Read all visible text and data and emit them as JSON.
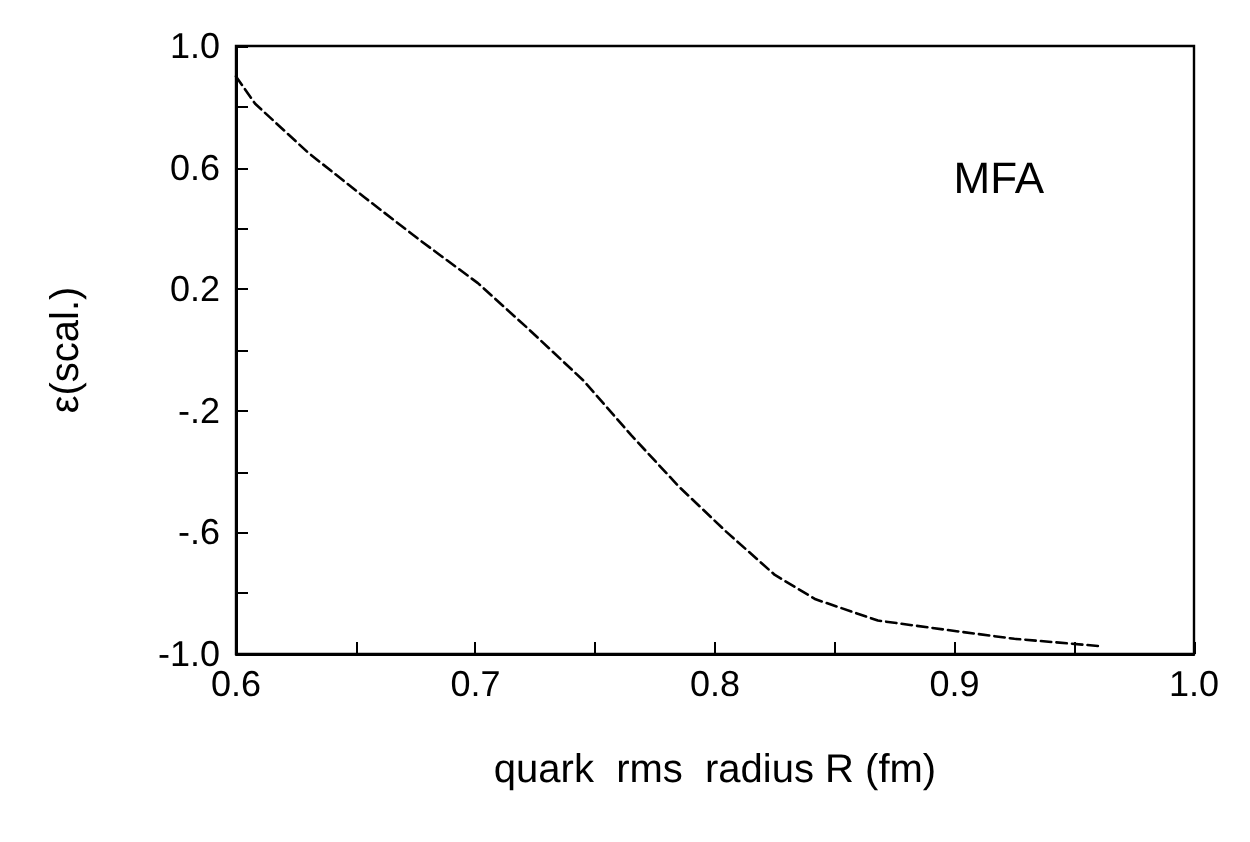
{
  "chart_data": {
    "type": "line",
    "xlabel": "quark  rms  radius R (fm)",
    "ylabel": "ε(scal.)",
    "annotations": [
      "MFA"
    ],
    "x": [
      0.6,
      0.608,
      0.63,
      0.654,
      0.677,
      0.701,
      0.722,
      0.745,
      0.765,
      0.785,
      0.805,
      0.825,
      0.842,
      0.868,
      0.896,
      0.925,
      0.962
    ],
    "series": [
      {
        "color": "#000000",
        "values": [
          0.9,
          0.81,
          0.65,
          0.5,
          0.36,
          0.22,
          0.07,
          -0.1,
          -0.28,
          -0.45,
          -0.6,
          -0.74,
          -0.82,
          -0.89,
          -0.92,
          -0.95,
          -0.975
        ]
      }
    ],
    "xlim": [
      0.6,
      1.0
    ],
    "xticks": [
      {
        "value": 0.6,
        "label": "0.6"
      },
      {
        "value": 0.65,
        "label": null
      },
      {
        "value": 0.7,
        "label": "0.7"
      },
      {
        "value": 0.75,
        "label": null
      },
      {
        "value": 0.8,
        "label": "0.8"
      },
      {
        "value": 0.85,
        "label": null
      },
      {
        "value": 0.9,
        "label": "0.9"
      },
      {
        "value": 0.95,
        "label": null
      },
      {
        "value": 1.0,
        "label": "1.0"
      }
    ],
    "ylim": [
      -1.0,
      1.0
    ],
    "yticks": [
      {
        "value": -1.0,
        "label": "-1.0"
      },
      {
        "value": -0.8,
        "label": null
      },
      {
        "value": -0.6,
        "label": "-.6"
      },
      {
        "value": -0.4,
        "label": null
      },
      {
        "value": -0.2,
        "label": "-.2"
      },
      {
        "value": 0,
        "label": null
      },
      {
        "value": 0.2,
        "label": "0.2"
      },
      {
        "value": 0.4,
        "label": null
      },
      {
        "value": 0.6,
        "label": "0.6"
      },
      {
        "value": 0.8,
        "label": null
      },
      {
        "value": 1.0,
        "label": "1.0"
      }
    ],
    "marker": "none",
    "line_style": "dashed"
  }
}
